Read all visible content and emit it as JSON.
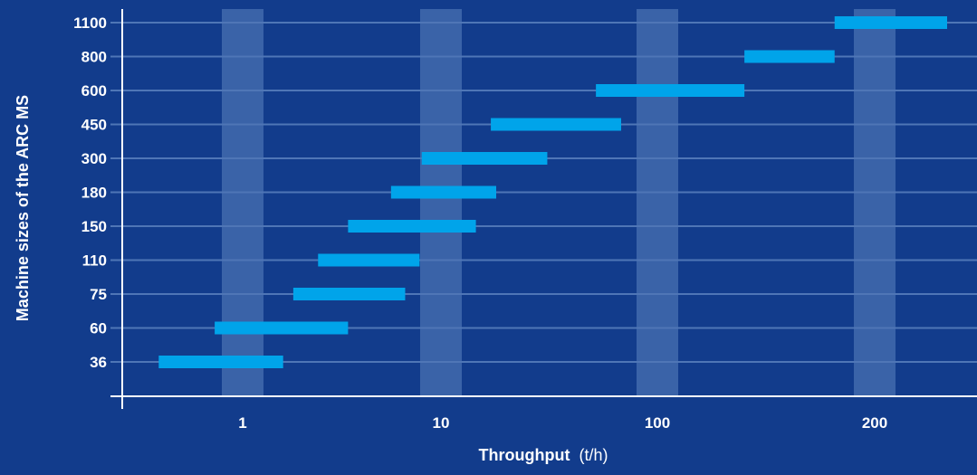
{
  "chart_data": {
    "type": "bar",
    "orientation": "horizontal-range",
    "xlabel": "Throughput",
    "xunit": "(t/h)",
    "ylabel": "Machine sizes of the ARC MS",
    "x_ticks": [
      "1",
      "10",
      "100",
      "200"
    ],
    "categories": [
      "36",
      "60",
      "75",
      "110",
      "150",
      "180",
      "300",
      "450",
      "600",
      "800",
      "1100"
    ],
    "ranges": [
      [
        0.55,
        1.6
      ],
      [
        0.85,
        3.4
      ],
      [
        1.8,
        6.6
      ],
      [
        2.4,
        7.8
      ],
      [
        3.4,
        14.5
      ],
      [
        5.6,
        18
      ],
      [
        8,
        31
      ],
      [
        17,
        68
      ],
      [
        52,
        132
      ],
      [
        132,
        176
      ],
      [
        176,
        232
      ]
    ],
    "grid": true,
    "colors": {
      "background": "#123c8c",
      "bar": "#00a4ea",
      "band": "#3a63a8",
      "gridline": "#4f76b6",
      "axis": "#ffffff",
      "text": "#ffffff"
    }
  }
}
